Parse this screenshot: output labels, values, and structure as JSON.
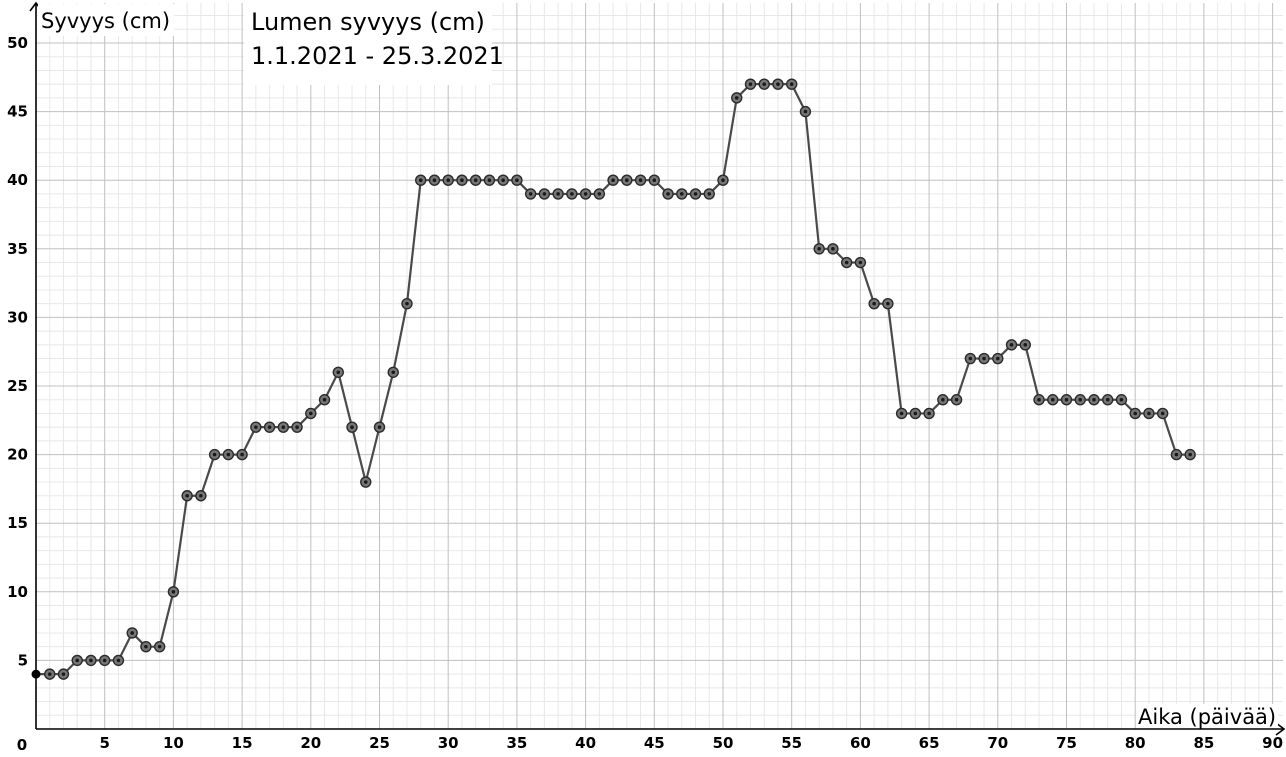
{
  "chart_data": {
    "type": "line",
    "title": "Lumen syvyys (cm)",
    "subtitle": "1.1.2021 - 25.3.2021",
    "xlabel": "Aika (päivää)",
    "ylabel": "Syvyys (cm)",
    "xlim": [
      0,
      90
    ],
    "ylim": [
      0,
      50
    ],
    "x_ticks": [
      5,
      10,
      15,
      20,
      25,
      30,
      35,
      40,
      45,
      50,
      55,
      60,
      65,
      70,
      75,
      80,
      85,
      90
    ],
    "y_ticks": [
      5,
      10,
      15,
      20,
      25,
      30,
      35,
      40,
      45,
      50
    ],
    "origin_label": "0",
    "grid": true,
    "series": [
      {
        "x": [
          0,
          1,
          2,
          3,
          4,
          5,
          6,
          7,
          8,
          9,
          10,
          11,
          12,
          13,
          14,
          15,
          16,
          17,
          18,
          19,
          20,
          21,
          22,
          23,
          24,
          25,
          26,
          27,
          28,
          29,
          30,
          31,
          32,
          33,
          34,
          35,
          36,
          37,
          38,
          39,
          40,
          41,
          42,
          43,
          44,
          45,
          46,
          47,
          48,
          49,
          50,
          51,
          52,
          53,
          54,
          55,
          56,
          57,
          58,
          59,
          60,
          61,
          62,
          63,
          64,
          65,
          66,
          67,
          68,
          69,
          70,
          71,
          72,
          73,
          74,
          75,
          76,
          77,
          78,
          79,
          80,
          81,
          82,
          83,
          84
        ],
        "values": [
          4,
          4,
          4,
          5,
          5,
          5,
          5,
          7,
          6,
          6,
          10,
          17,
          17,
          20,
          20,
          20,
          22,
          22,
          22,
          22,
          23,
          24,
          26,
          22,
          18,
          22,
          26,
          31,
          40,
          40,
          40,
          40,
          40,
          40,
          40,
          40,
          39,
          39,
          39,
          39,
          39,
          39,
          40,
          40,
          40,
          40,
          39,
          39,
          39,
          39,
          40,
          46,
          47,
          47,
          47,
          47,
          45,
          35,
          35,
          34,
          34,
          31,
          31,
          23,
          23,
          23,
          24,
          24,
          27,
          27,
          27,
          28,
          28,
          24,
          24,
          24,
          24,
          24,
          24,
          24,
          23,
          23,
          23,
          20,
          20
        ]
      }
    ]
  }
}
